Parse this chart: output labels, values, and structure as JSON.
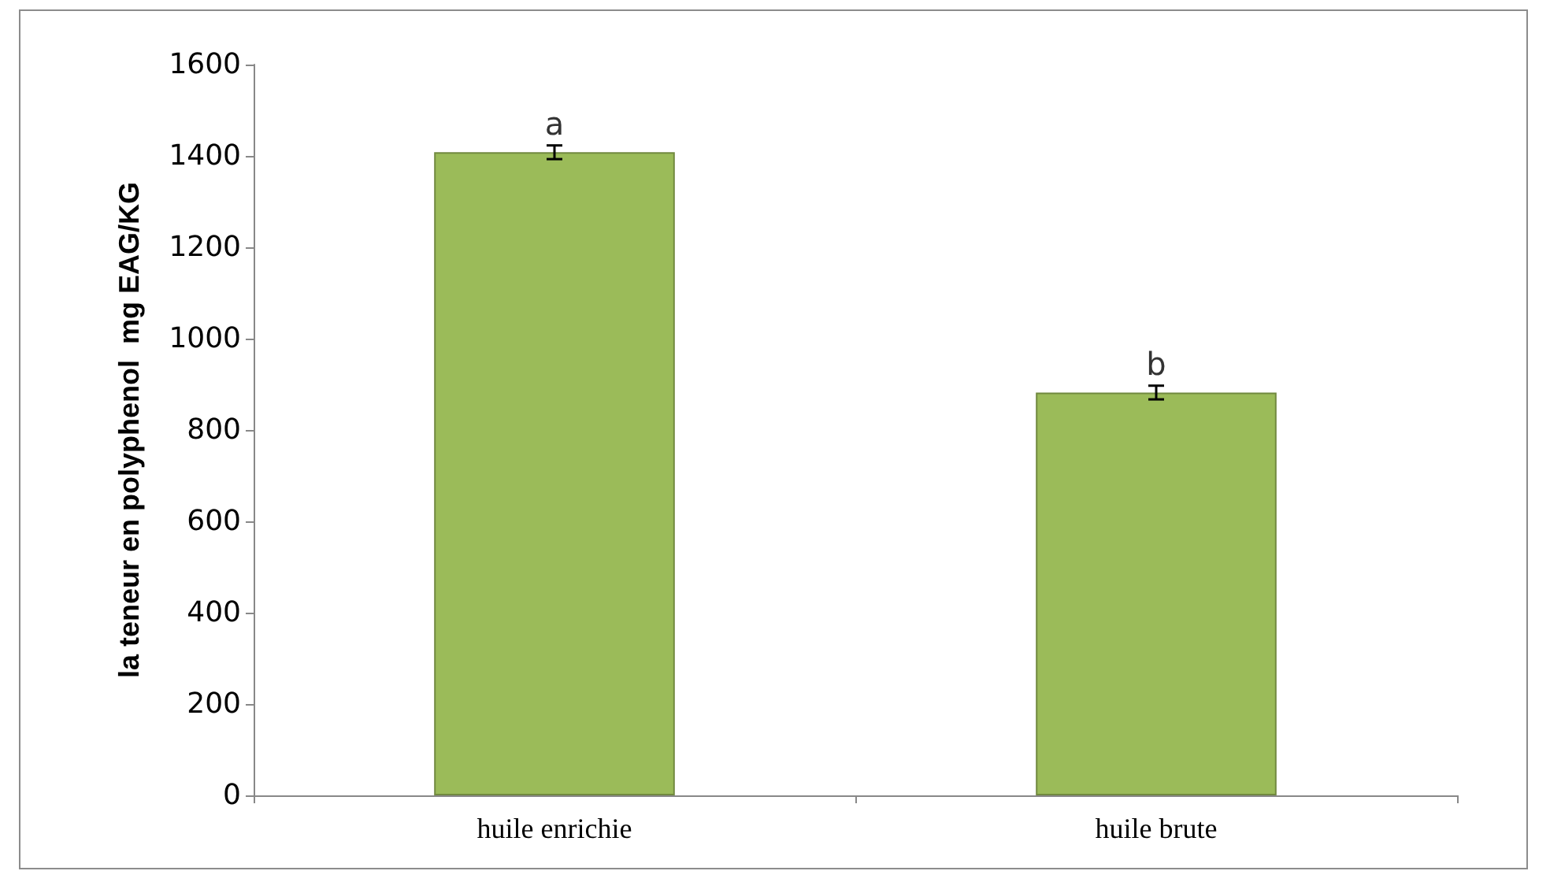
{
  "chart_data": {
    "type": "bar",
    "ylabel": "la teneur en polyphenol  mg EAG/KG",
    "categories": [
      "huile enrichie",
      "huile brute"
    ],
    "values": [
      1408,
      882
    ],
    "errors": [
      15,
      15
    ],
    "color": "#9bbb59",
    "ylim": [
      0,
      1600
    ],
    "yticks": [
      0,
      200,
      400,
      600,
      800,
      1000,
      1200,
      1400,
      1600
    ],
    "grid": false,
    "annotations": [
      "a",
      "b"
    ]
  }
}
